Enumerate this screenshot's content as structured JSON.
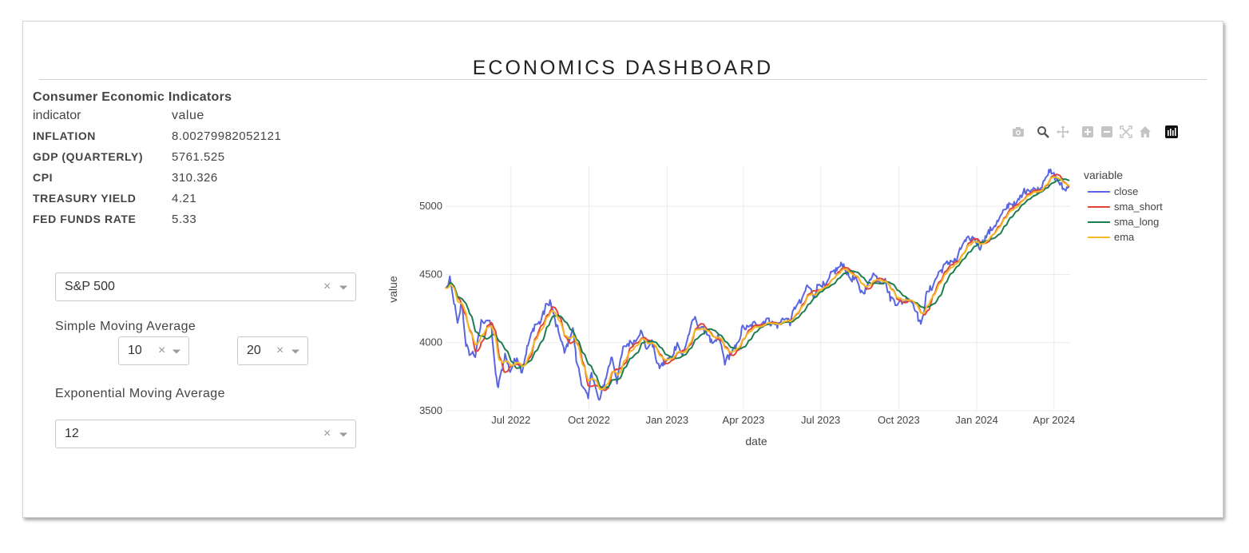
{
  "header": {
    "title": "ECONOMICS DASHBOARD"
  },
  "indicators": {
    "title": "Consumer Economic Indicators",
    "columns": [
      "indicator",
      "value"
    ],
    "rows": [
      {
        "indicator": "INFLATION",
        "value": "8.00279982052121"
      },
      {
        "indicator": "GDP (QUARTERLY)",
        "value": "5761.525"
      },
      {
        "indicator": "CPI",
        "value": "310.326"
      },
      {
        "indicator": "TREASURY YIELD",
        "value": "4.21"
      },
      {
        "indicator": "FED FUNDS RATE",
        "value": "5.33"
      }
    ]
  },
  "controls": {
    "index_select": {
      "value": "S&P 500"
    },
    "sma_label": "Simple Moving Average",
    "sma_short": {
      "value": "10"
    },
    "sma_long": {
      "value": "20"
    },
    "ema_label": "Exponential Moving Average",
    "ema_select": {
      "value": "12"
    },
    "clear_glyph": "×"
  },
  "toolbar": {
    "icons": [
      "camera-icon",
      "zoom-icon",
      "pan-icon",
      "zoom-in-icon",
      "zoom-out-icon",
      "autoscale-icon",
      "reset-axes-icon",
      "plotly-logo-icon"
    ]
  },
  "chart_data": {
    "type": "line",
    "xlabel": "date",
    "ylabel": "value",
    "legend_title": "variable",
    "legend_position": "top-right",
    "x_range": [
      "2022-04-15",
      "2024-04-20"
    ],
    "ylim": [
      3500,
      5300
    ],
    "x_ticks": [
      {
        "date": "2022-07-01",
        "label": "Jul 2022"
      },
      {
        "date": "2022-10-01",
        "label": "Oct 2022"
      },
      {
        "date": "2023-01-01",
        "label": "Jan 2023"
      },
      {
        "date": "2023-04-01",
        "label": "Apr 2023"
      },
      {
        "date": "2023-07-01",
        "label": "Jul 2023"
      },
      {
        "date": "2023-10-01",
        "label": "Oct 2023"
      },
      {
        "date": "2024-01-01",
        "label": "Jan 2024"
      },
      {
        "date": "2024-04-01",
        "label": "Apr 2024"
      }
    ],
    "y_ticks": [
      3500,
      4000,
      4500,
      5000
    ],
    "grid": true,
    "series_meta": [
      {
        "name": "close",
        "color": "#5a66e0"
      },
      {
        "name": "sma_short",
        "color": "#e0443a"
      },
      {
        "name": "sma_long",
        "color": "#1e7d4f"
      },
      {
        "name": "ema",
        "color": "#f5b928"
      }
    ],
    "close_points": [
      [
        "2022-04-15",
        4390
      ],
      [
        "2022-04-20",
        4460
      ],
      [
        "2022-04-25",
        4300
      ],
      [
        "2022-04-29",
        4130
      ],
      [
        "2022-05-04",
        4300
      ],
      [
        "2022-05-09",
        3990
      ],
      [
        "2022-05-12",
        3930
      ],
      [
        "2022-05-18",
        3920
      ],
      [
        "2022-05-20",
        3900
      ],
      [
        "2022-05-27",
        4150
      ],
      [
        "2022-06-02",
        4170
      ],
      [
        "2022-06-08",
        4120
      ],
      [
        "2022-06-13",
        3750
      ],
      [
        "2022-06-16",
        3670
      ],
      [
        "2022-06-24",
        3910
      ],
      [
        "2022-06-30",
        3790
      ],
      [
        "2022-07-08",
        3900
      ],
      [
        "2022-07-14",
        3790
      ],
      [
        "2022-07-20",
        3960
      ],
      [
        "2022-07-29",
        4130
      ],
      [
        "2022-08-05",
        4150
      ],
      [
        "2022-08-12",
        4280
      ],
      [
        "2022-08-16",
        4305
      ],
      [
        "2022-08-23",
        4130
      ],
      [
        "2022-08-29",
        4030
      ],
      [
        "2022-09-02",
        3920
      ],
      [
        "2022-09-12",
        4110
      ],
      [
        "2022-09-16",
        3875
      ],
      [
        "2022-09-23",
        3690
      ],
      [
        "2022-09-30",
        3585
      ],
      [
        "2022-10-04",
        3790
      ],
      [
        "2022-10-12",
        3580
      ],
      [
        "2022-10-14",
        3580
      ],
      [
        "2022-10-21",
        3750
      ],
      [
        "2022-10-28",
        3900
      ],
      [
        "2022-11-03",
        3720
      ],
      [
        "2022-11-10",
        3950
      ],
      [
        "2022-11-15",
        3990
      ],
      [
        "2022-11-22",
        4000
      ],
      [
        "2022-11-30",
        4080
      ],
      [
        "2022-12-02",
        4070
      ],
      [
        "2022-12-09",
        3935
      ],
      [
        "2022-12-13",
        4020
      ],
      [
        "2022-12-22",
        3820
      ],
      [
        "2022-12-29",
        3850
      ],
      [
        "2023-01-06",
        3895
      ],
      [
        "2023-01-13",
        4000
      ],
      [
        "2023-01-19",
        3900
      ],
      [
        "2023-01-27",
        4070
      ],
      [
        "2023-02-02",
        4180
      ],
      [
        "2023-02-10",
        4090
      ],
      [
        "2023-02-16",
        4090
      ],
      [
        "2023-02-24",
        3970
      ],
      [
        "2023-03-03",
        4045
      ],
      [
        "2023-03-10",
        3860
      ],
      [
        "2023-03-17",
        3920
      ],
      [
        "2023-03-24",
        3970
      ],
      [
        "2023-03-31",
        4110
      ],
      [
        "2023-04-07",
        4105
      ],
      [
        "2023-04-14",
        4140
      ],
      [
        "2023-04-21",
        4135
      ],
      [
        "2023-04-28",
        4170
      ],
      [
        "2023-05-05",
        4140
      ],
      [
        "2023-05-12",
        4125
      ],
      [
        "2023-05-19",
        4190
      ],
      [
        "2023-05-26",
        4150
      ],
      [
        "2023-06-02",
        4280
      ],
      [
        "2023-06-09",
        4300
      ],
      [
        "2023-06-15",
        4420
      ],
      [
        "2023-06-23",
        4350
      ],
      [
        "2023-06-30",
        4450
      ],
      [
        "2023-07-07",
        4400
      ],
      [
        "2023-07-14",
        4510
      ],
      [
        "2023-07-21",
        4540
      ],
      [
        "2023-07-27",
        4580
      ],
      [
        "2023-08-04",
        4480
      ],
      [
        "2023-08-11",
        4460
      ],
      [
        "2023-08-18",
        4370
      ],
      [
        "2023-08-25",
        4400
      ],
      [
        "2023-08-31",
        4510
      ],
      [
        "2023-09-08",
        4460
      ],
      [
        "2023-09-15",
        4450
      ],
      [
        "2023-09-21",
        4330
      ],
      [
        "2023-09-29",
        4290
      ],
      [
        "2023-10-06",
        4300
      ],
      [
        "2023-10-13",
        4330
      ],
      [
        "2023-10-19",
        4280
      ],
      [
        "2023-10-27",
        4120
      ],
      [
        "2023-11-03",
        4360
      ],
      [
        "2023-11-10",
        4415
      ],
      [
        "2023-11-17",
        4510
      ],
      [
        "2023-11-24",
        4560
      ],
      [
        "2023-12-01",
        4600
      ],
      [
        "2023-12-08",
        4600
      ],
      [
        "2023-12-15",
        4720
      ],
      [
        "2023-12-22",
        4755
      ],
      [
        "2023-12-29",
        4770
      ],
      [
        "2024-01-05",
        4700
      ],
      [
        "2024-01-12",
        4780
      ],
      [
        "2024-01-19",
        4840
      ],
      [
        "2024-01-26",
        4890
      ],
      [
        "2024-02-02",
        4960
      ],
      [
        "2024-02-09",
        5030
      ],
      [
        "2024-02-16",
        5000
      ],
      [
        "2024-02-23",
        5090
      ],
      [
        "2024-03-01",
        5130
      ],
      [
        "2024-03-08",
        5120
      ],
      [
        "2024-03-15",
        5120
      ],
      [
        "2024-03-22",
        5230
      ],
      [
        "2024-03-28",
        5250
      ],
      [
        "2024-04-05",
        5200
      ],
      [
        "2024-04-12",
        5125
      ],
      [
        "2024-04-19",
        5140
      ]
    ]
  }
}
